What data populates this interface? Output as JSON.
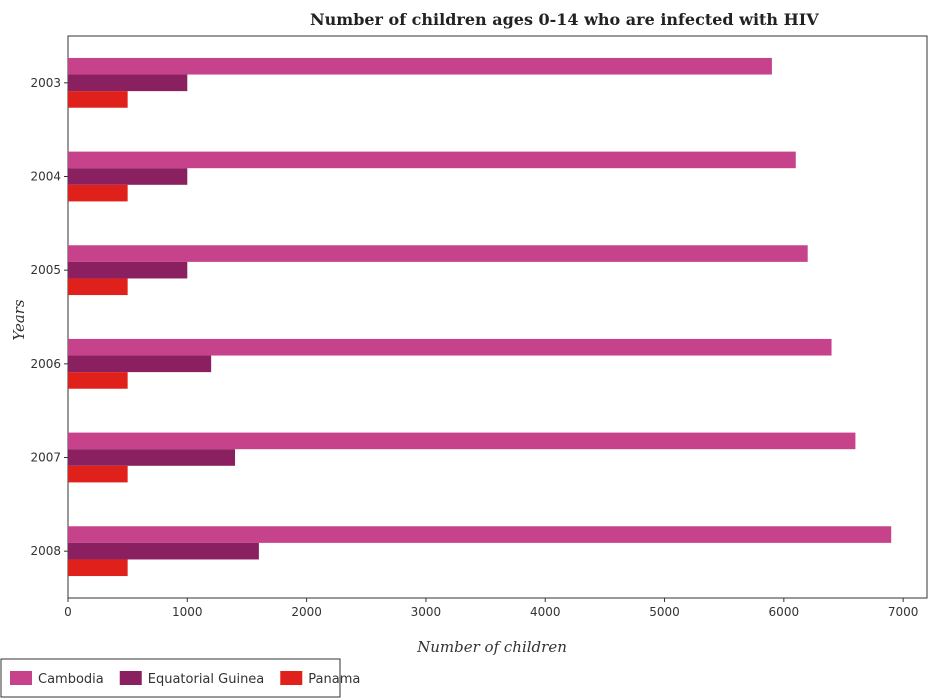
{
  "chart_data": {
    "type": "bar",
    "orientation": "horizontal",
    "title": "Number of children ages 0-14 who are infected with HIV",
    "xlabel": "Number of children",
    "ylabel": "Years",
    "categories": [
      "2003",
      "2004",
      "2005",
      "2006",
      "2007",
      "2008"
    ],
    "xlim": [
      0,
      7200
    ],
    "xticks": [
      0,
      1000,
      2000,
      3000,
      4000,
      5000,
      6000,
      7000
    ],
    "series": [
      {
        "name": "Cambodia",
        "color": "#c6428a",
        "values": [
          5900,
          6100,
          6200,
          6400,
          6600,
          6900
        ]
      },
      {
        "name": "Equatorial Guinea",
        "color": "#8b2060",
        "values": [
          1000,
          1000,
          1000,
          1200,
          1400,
          1600
        ]
      },
      {
        "name": "Panama",
        "color": "#e0201a",
        "values": [
          500,
          500,
          500,
          500,
          500,
          500
        ]
      }
    ],
    "grid": false,
    "legend_position": "bottom-left"
  }
}
